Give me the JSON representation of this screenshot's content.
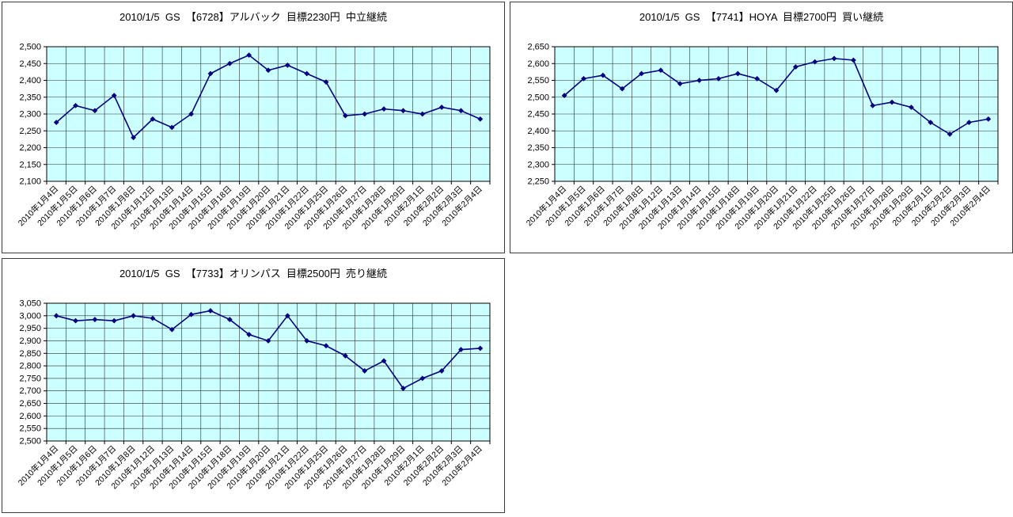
{
  "chart_data": [
    {
      "type": "line",
      "title": "2010/1/5  GS  【6728】アルバック  目標2230円  中立継続",
      "categories": [
        "2010年1月4日",
        "2010年1月5日",
        "2010年1月6日",
        "2010年1月7日",
        "2010年1月8日",
        "2010年1月12日",
        "2010年1月13日",
        "2010年1月14日",
        "2010年1月15日",
        "2010年1月18日",
        "2010年1月19日",
        "2010年1月20日",
        "2010年1月21日",
        "2010年1月22日",
        "2010年1月25日",
        "2010年1月26日",
        "2010年1月27日",
        "2010年1月28日",
        "2010年1月29日",
        "2010年2月1日",
        "2010年2月2日",
        "2010年2月3日",
        "2010年2月4日"
      ],
      "values": [
        2275,
        2325,
        2310,
        2355,
        2230,
        2285,
        2260,
        2300,
        2420,
        2450,
        2475,
        2430,
        2445,
        2420,
        2395,
        2295,
        2300,
        2315,
        2310,
        2300,
        2320,
        2310,
        2285
      ],
      "ylim": [
        2100,
        2500
      ],
      "ytick_step": 50,
      "ytick_labels": [
        "2,100",
        "2,150",
        "2,200",
        "2,250",
        "2,300",
        "2,350",
        "2,400",
        "2,450",
        "2,500"
      ],
      "xlabel": "",
      "ylabel": "",
      "legend": "none",
      "grid": "on",
      "marker": "diamond",
      "line_color": "#000080",
      "plot_bg": "#CCFFFF",
      "grid_color": "#2b2b2b"
    },
    {
      "type": "line",
      "title": "2010/1/5  GS  【7741】HOYA  目標2700円  買い継続",
      "categories": [
        "2010年1月4日",
        "2010年1月5日",
        "2010年1月6日",
        "2010年1月7日",
        "2010年1月8日",
        "2010年1月12日",
        "2010年1月13日",
        "2010年1月14日",
        "2010年1月15日",
        "2010年1月18日",
        "2010年1月19日",
        "2010年1月20日",
        "2010年1月21日",
        "2010年1月22日",
        "2010年1月25日",
        "2010年1月26日",
        "2010年1月27日",
        "2010年1月28日",
        "2010年1月29日",
        "2010年2月1日",
        "2010年2月2日",
        "2010年2月3日",
        "2010年2月4日"
      ],
      "values": [
        2505,
        2555,
        2565,
        2525,
        2570,
        2580,
        2540,
        2550,
        2555,
        2570,
        2555,
        2520,
        2590,
        2605,
        2615,
        2610,
        2475,
        2485,
        2470,
        2425,
        2390,
        2425,
        2435
      ],
      "ylim": [
        2250,
        2650
      ],
      "ytick_step": 50,
      "ytick_labels": [
        "2,250",
        "2,300",
        "2,350",
        "2,400",
        "2,450",
        "2,500",
        "2,550",
        "2,600",
        "2,650"
      ],
      "xlabel": "",
      "ylabel": "",
      "legend": "none",
      "grid": "on",
      "marker": "diamond",
      "line_color": "#000080",
      "plot_bg": "#CCFFFF",
      "grid_color": "#2b2b2b"
    },
    {
      "type": "line",
      "title": "2010/1/5  GS  【7733】オリンパス  目標2500円  売り継続",
      "categories": [
        "2010年1月4日",
        "2010年1月5日",
        "2010年1月6日",
        "2010年1月7日",
        "2010年1月8日",
        "2010年1月12日",
        "2010年1月13日",
        "2010年1月14日",
        "2010年1月15日",
        "2010年1月18日",
        "2010年1月19日",
        "2010年1月20日",
        "2010年1月21日",
        "2010年1月22日",
        "2010年1月25日",
        "2010年1月26日",
        "2010年1月27日",
        "2010年1月28日",
        "2010年1月29日",
        "2010年2月1日",
        "2010年2月2日",
        "2010年2月3日",
        "2010年2月4日"
      ],
      "values": [
        3000,
        2980,
        2985,
        2980,
        3000,
        2990,
        2945,
        3005,
        3020,
        2985,
        2925,
        2900,
        3000,
        2900,
        2880,
        2840,
        2780,
        2820,
        2710,
        2750,
        2780,
        2865,
        2870
      ],
      "ylim": [
        2500,
        3050
      ],
      "ytick_step": 50,
      "ytick_labels": [
        "2,500",
        "2,550",
        "2,600",
        "2,650",
        "2,700",
        "2,750",
        "2,800",
        "2,850",
        "2,900",
        "2,950",
        "3,000",
        "3,050"
      ],
      "xlabel": "",
      "ylabel": "",
      "legend": "none",
      "grid": "on",
      "marker": "diamond",
      "line_color": "#000080",
      "plot_bg": "#CCFFFF",
      "grid_color": "#2b2b2b"
    }
  ]
}
